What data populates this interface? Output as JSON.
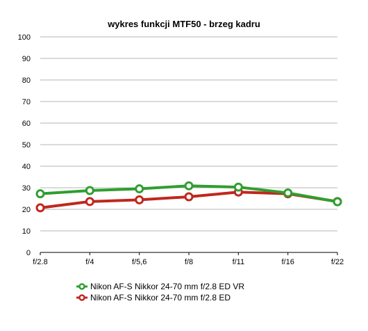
{
  "chart_data": {
    "type": "line",
    "title": "wykres funkcji MTF50 - brzeg kadru",
    "categories": [
      "f/2.8",
      "f/4",
      "f/5,6",
      "f/8",
      "f/11",
      "f/16",
      "f/22"
    ],
    "ylim": [
      0,
      100
    ],
    "yticks": [
      "0",
      "10",
      "20",
      "30",
      "40",
      "50",
      "60",
      "70",
      "80",
      "90",
      "100"
    ],
    "grid": true,
    "legend_position": "bottom",
    "series": [
      {
        "name": "Nikon AF-S Nikkor 24-70 mm f/2.8 ED VR",
        "color": "#2f9e2f",
        "values": [
          27.2,
          28.7,
          29.5,
          30.9,
          30.3,
          27.6,
          23.5
        ]
      },
      {
        "name": "Nikon AF-S Nikkor 24-70 mm f/2.8 ED",
        "color": "#c0271e",
        "values": [
          20.7,
          23.6,
          24.4,
          25.8,
          28.0,
          27.2,
          23.6
        ]
      }
    ]
  }
}
